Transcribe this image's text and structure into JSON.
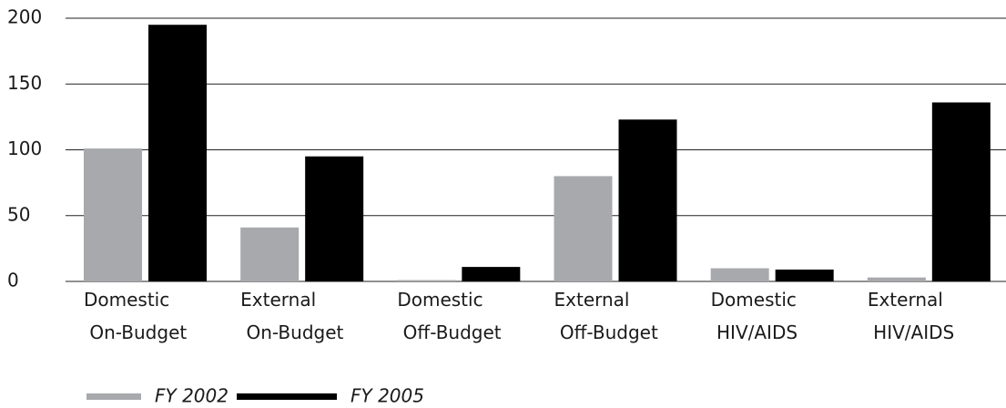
{
  "chart_data": {
    "type": "bar",
    "categories": [
      "Domestic On-Budget",
      "External On-Budget",
      "Domestic Off-Budget",
      "External Off-Budget",
      "Domestic HIV/AIDS",
      "External HIV/AIDS"
    ],
    "series": [
      {
        "name": "FY 2002",
        "color": "#a7a9ac",
        "values": [
          101,
          41,
          1,
          80,
          10,
          3
        ]
      },
      {
        "name": "FY 2005",
        "color": "#000000",
        "values": [
          195,
          95,
          11,
          123,
          9,
          136
        ]
      }
    ],
    "ylim": [
      0,
      200
    ],
    "yticks": [
      0,
      50,
      100,
      150,
      200
    ],
    "grid": true
  }
}
